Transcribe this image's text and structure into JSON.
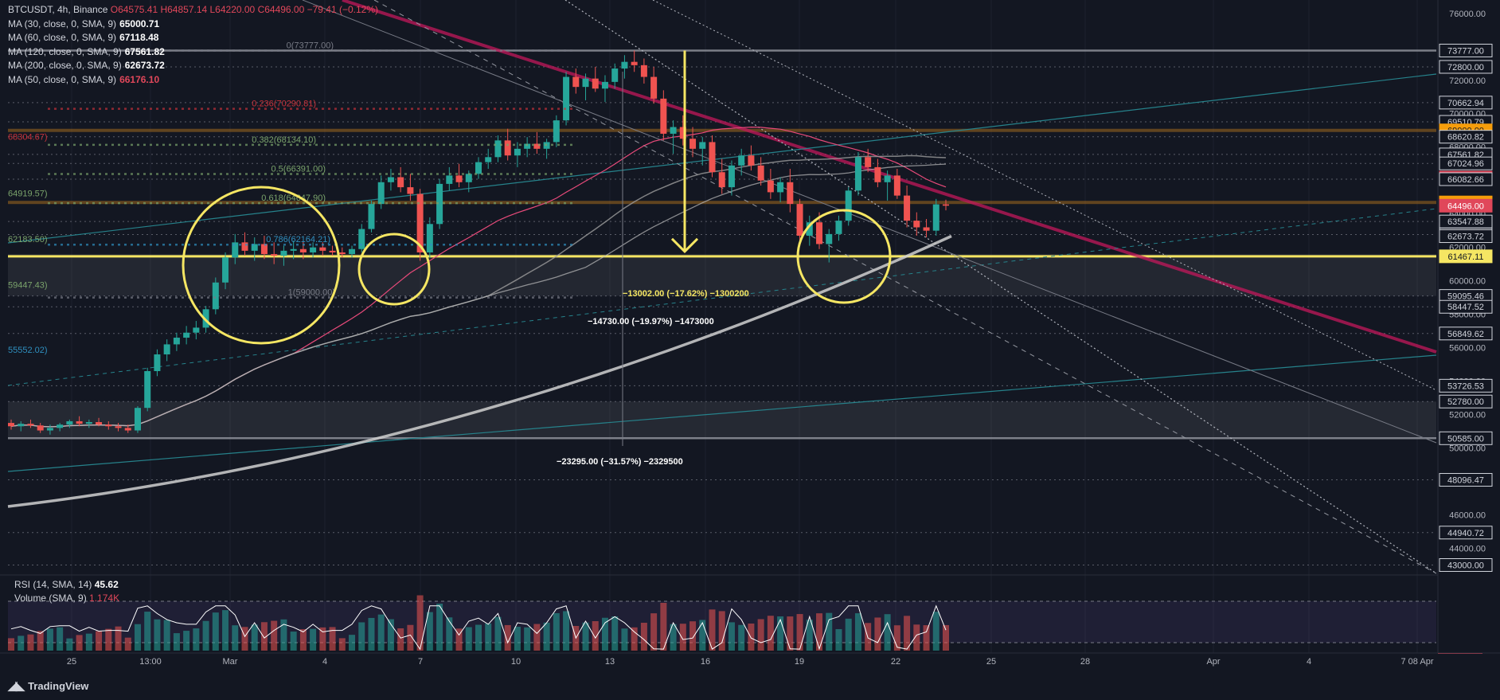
{
  "header": {
    "symbol": "BTCUSDT, 4h, Binance",
    "ohlc": "O64575.41 H64857.14 L64220.00 C64496.00 −79.41 (−0.12%)"
  },
  "ma_legend": [
    {
      "label": "MA (30, close, 0, SMA, 9)",
      "value": "65000.71",
      "color": "#e84a7a"
    },
    {
      "label": "MA (60, close, 0, SMA, 9)",
      "value": "67118.48",
      "color": "#9e9e9e"
    },
    {
      "label": "MA (120, close, 0, SMA, 9)",
      "value": "67561.82",
      "color": "#757575"
    },
    {
      "label": "MA (200, close, 0, SMA, 9)",
      "value": "62673.72",
      "color": "#bdbdbd"
    },
    {
      "label": "MA (50, close, 0, SMA, 9)",
      "value": "66176.10",
      "color": "#e0475a"
    }
  ],
  "rsi_legend": {
    "rsi_label": "RSI (14, SMA, 14)",
    "rsi_value": "45.62",
    "vol_label": "Volume (SMA, 9)",
    "vol_value": "1.174K"
  },
  "brand": {
    "name": "TradingView"
  },
  "measurements": [
    {
      "text": "−13002.00 (−17.62%) −1300200",
      "color": "#f5e663"
    },
    {
      "text": "−14730.00 (−19.97%) −1473000",
      "color": "#ffffff"
    },
    {
      "text": "−23295.00 (−31.57%) −2329500",
      "color": "#ffffff"
    }
  ],
  "fib_labels": [
    {
      "text": "0(73777.00)",
      "price": 73777,
      "color": "#787b86"
    },
    {
      "text": "0.236(70290.81)",
      "price": 70290.81,
      "color": "#c8323a"
    },
    {
      "text": "0.382(68134.10)",
      "price": 68134.1,
      "color": "#7aa36b"
    },
    {
      "text": "0.5(66391.00)",
      "price": 66391,
      "color": "#7aa36b"
    },
    {
      "text": "0.618(64647.90)",
      "price": 64647.9,
      "color": "#7aa36b"
    },
    {
      "text": "0.786(62164.21)",
      "price": 62164.21,
      "color": "#2f8fbf"
    },
    {
      "text": "1(59000.00)",
      "price": 59000,
      "color": "#787b86"
    }
  ],
  "left_labels": [
    {
      "text": "68304.67)",
      "price": 68304.67,
      "color": "#c8323a"
    },
    {
      "text": "64919.57)",
      "price": 64919.57,
      "color": "#7aa36b"
    },
    {
      "text": "62183.50)",
      "price": 62183.5,
      "color": "#7aa36b"
    },
    {
      "text": "59447.43)",
      "price": 59447.43,
      "color": "#7aa36b"
    },
    {
      "text": "55552.02)",
      "price": 55552.02,
      "color": "#2f8fbf"
    }
  ],
  "chart_data": {
    "type": "candlestick",
    "symbol": "BTCUSDT",
    "timeframe": "4h",
    "ylim": [
      42500,
      76800
    ],
    "x_ticks": [
      "25",
      "13:00",
      "Mar",
      "4",
      "7",
      "10",
      "13",
      "16",
      "19",
      "22",
      "25",
      "28",
      "Apr",
      "4",
      "7 08 Apr"
    ],
    "y_ticks": [
      76000,
      74000,
      72000,
      70000,
      68000,
      66000,
      64000,
      62000,
      60000,
      58000,
      56000,
      54000,
      52000,
      50000,
      48000,
      46000,
      44000,
      43000
    ],
    "price_labels": [
      {
        "value": "73777.00",
        "style": "outline"
      },
      {
        "value": "72800.00",
        "style": "outline"
      },
      {
        "value": "70662.94",
        "style": "outline"
      },
      {
        "value": "69510.79",
        "style": "outline"
      },
      {
        "value": "69000.00",
        "style": "orange"
      },
      {
        "value": "68620.82",
        "style": "outline"
      },
      {
        "value": "67561.82",
        "style": "outline"
      },
      {
        "value": "67024.96",
        "style": "outline"
      },
      {
        "value": "66176.10",
        "style": "red"
      },
      {
        "value": "66082.66",
        "style": "outline"
      },
      {
        "value": "64689.92",
        "style": "orange"
      },
      {
        "value": "64496.00",
        "style": "red"
      },
      {
        "value": "63547.88",
        "style": "outline"
      },
      {
        "value": "62772.52",
        "style": "outline"
      },
      {
        "value": "62673.72",
        "style": "outline"
      },
      {
        "value": "61467.11",
        "style": "yellow"
      },
      {
        "value": "59095.46",
        "style": "outline"
      },
      {
        "value": "58447.52",
        "style": "outline"
      },
      {
        "value": "56849.62",
        "style": "outline"
      },
      {
        "value": "53726.53",
        "style": "outline"
      },
      {
        "value": "52780.00",
        "style": "outline"
      },
      {
        "value": "50585.00",
        "style": "outline"
      },
      {
        "value": "48096.47",
        "style": "outline"
      },
      {
        "value": "44940.72",
        "style": "outline"
      },
      {
        "value": "43000.00",
        "style": "outline"
      }
    ],
    "horizontal_levels": [
      73777,
      72800,
      70662.94,
      69510.79,
      68620.82,
      67561.82,
      67024.96,
      66082.66,
      63547.88,
      62772.52,
      59095.46,
      58447.52,
      56849.62,
      53726.53,
      52780,
      50585,
      48096.47,
      44940.72,
      43000
    ],
    "support_level": 61467.11,
    "orange_levels": [
      69000,
      64689.92
    ],
    "candles_ohlc": [
      [
        51500,
        51700,
        51100,
        51300
      ],
      [
        51300,
        51600,
        51000,
        51450
      ],
      [
        51450,
        51700,
        51200,
        51350
      ],
      [
        51350,
        51500,
        50900,
        51050
      ],
      [
        51050,
        51400,
        50800,
        51200
      ],
      [
        51200,
        51500,
        51000,
        51400
      ],
      [
        51400,
        51700,
        51200,
        51600
      ],
      [
        51600,
        51900,
        51300,
        51450
      ],
      [
        51450,
        51700,
        51200,
        51550
      ],
      [
        51550,
        51800,
        51300,
        51400
      ],
      [
        51400,
        51600,
        51100,
        51300
      ],
      [
        51300,
        51500,
        51000,
        51200
      ],
      [
        51200,
        51400,
        50900,
        51050
      ],
      [
        51050,
        52500,
        50900,
        52400
      ],
      [
        52400,
        54800,
        52200,
        54600
      ],
      [
        54600,
        55900,
        54300,
        55600
      ],
      [
        55600,
        56500,
        55200,
        56200
      ],
      [
        56200,
        56900,
        55800,
        56600
      ],
      [
        56600,
        57300,
        56200,
        56900
      ],
      [
        56900,
        57600,
        56500,
        57200
      ],
      [
        57200,
        58500,
        56900,
        58300
      ],
      [
        58300,
        60200,
        58000,
        59900
      ],
      [
        59900,
        61700,
        59500,
        61400
      ],
      [
        61400,
        62800,
        61000,
        62300
      ],
      [
        62300,
        62900,
        61500,
        61800
      ],
      [
        61800,
        62600,
        61200,
        62200
      ],
      [
        62200,
        62700,
        61300,
        61600
      ],
      [
        61600,
        62300,
        61000,
        61500
      ],
      [
        61500,
        62100,
        60900,
        61800
      ],
      [
        61800,
        62400,
        61300,
        61900
      ],
      [
        61900,
        62400,
        61300,
        61700
      ],
      [
        61700,
        62300,
        61400,
        62000
      ],
      [
        62000,
        62300,
        61500,
        61800
      ],
      [
        61800,
        62100,
        61500,
        61700
      ],
      [
        61700,
        62000,
        61400,
        61600
      ],
      [
        61600,
        62100,
        61400,
        61900
      ],
      [
        61900,
        63400,
        61700,
        63100
      ],
      [
        63100,
        64800,
        62900,
        64600
      ],
      [
        64600,
        66300,
        64300,
        65900
      ],
      [
        65900,
        66700,
        65400,
        66200
      ],
      [
        66200,
        66800,
        65300,
        65600
      ],
      [
        65600,
        66400,
        64800,
        65200
      ],
      [
        65200,
        65500,
        61200,
        61700
      ],
      [
        61700,
        63800,
        61400,
        63400
      ],
      [
        63400,
        66100,
        63100,
        65800
      ],
      [
        65800,
        66800,
        65400,
        66300
      ],
      [
        66300,
        67000,
        65600,
        65900
      ],
      [
        65900,
        66600,
        65300,
        66400
      ],
      [
        66400,
        67400,
        66100,
        67100
      ],
      [
        67100,
        67900,
        66700,
        67400
      ],
      [
        67400,
        68700,
        67100,
        68400
      ],
      [
        68400,
        69100,
        67200,
        67500
      ],
      [
        67500,
        68300,
        66800,
        67900
      ],
      [
        67900,
        68600,
        67400,
        68200
      ],
      [
        68200,
        68900,
        67600,
        67900
      ],
      [
        67900,
        68500,
        67300,
        68300
      ],
      [
        68300,
        69900,
        68000,
        69600
      ],
      [
        69600,
        72500,
        69300,
        72200
      ],
      [
        72200,
        72700,
        71200,
        71600
      ],
      [
        71600,
        72400,
        70800,
        72100
      ],
      [
        72100,
        72800,
        71300,
        71500
      ],
      [
        71500,
        72300,
        70700,
        71900
      ],
      [
        71900,
        73000,
        71500,
        72700
      ],
      [
        72700,
        73500,
        72100,
        73100
      ],
      [
        73100,
        73777,
        72500,
        72900
      ],
      [
        72900,
        73300,
        71800,
        72200
      ],
      [
        72200,
        72800,
        70600,
        70900
      ],
      [
        70900,
        71400,
        68400,
        68800
      ],
      [
        68800,
        69600,
        67600,
        69200
      ],
      [
        69200,
        69900,
        68100,
        68500
      ],
      [
        68500,
        69200,
        67400,
        67900
      ],
      [
        67900,
        68600,
        66900,
        68300
      ],
      [
        68300,
        68700,
        66200,
        66500
      ],
      [
        66500,
        67300,
        65200,
        65600
      ],
      [
        65600,
        67200,
        65100,
        66900
      ],
      [
        66900,
        67900,
        66300,
        67500
      ],
      [
        67500,
        68100,
        66600,
        66900
      ],
      [
        66900,
        67400,
        65700,
        66000
      ],
      [
        66000,
        66700,
        64900,
        65300
      ],
      [
        65300,
        66200,
        64700,
        65900
      ],
      [
        65900,
        66700,
        64100,
        64600
      ],
      [
        64600,
        64900,
        62300,
        62700
      ],
      [
        62700,
        63900,
        62100,
        63500
      ],
      [
        63500,
        64100,
        61900,
        62200
      ],
      [
        62200,
        63100,
        61100,
        62800
      ],
      [
        62800,
        63900,
        62400,
        63600
      ],
      [
        63600,
        65600,
        63300,
        65400
      ],
      [
        65400,
        67700,
        65100,
        67400
      ],
      [
        67400,
        67900,
        66500,
        66800
      ],
      [
        66800,
        67300,
        65600,
        65900
      ],
      [
        65900,
        66600,
        64800,
        66300
      ],
      [
        66300,
        66700,
        64900,
        65100
      ],
      [
        65100,
        65700,
        63200,
        63600
      ],
      [
        63600,
        64100,
        62700,
        63200
      ],
      [
        63200,
        63700,
        62600,
        63000
      ],
      [
        63000,
        64900,
        62700,
        64575
      ],
      [
        64575,
        64857,
        64220,
        64496
      ]
    ],
    "rsi_value": 45.62,
    "volume_sma": "1.174K",
    "rsi_levels": [
      75
    ],
    "annotations": [
      "yellow circles at consolidation zones",
      "yellow down arrow from 73777 to 61467"
    ]
  }
}
